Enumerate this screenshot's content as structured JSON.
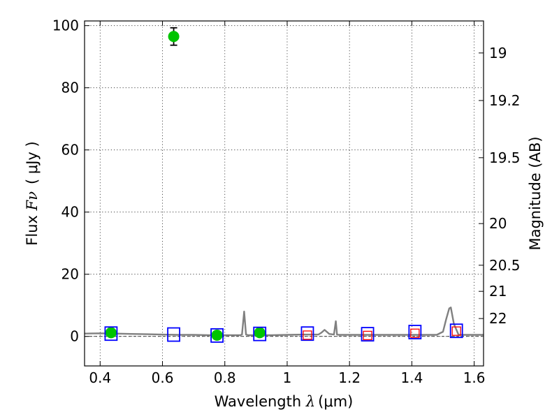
{
  "chart_data": {
    "type": "scatter",
    "title": "",
    "xlabel": "Wavelength λ (μm)",
    "ylabel": "Flux Fν ( μJy )",
    "y2label": "Magnitude (AB)",
    "xlabel_parts": {
      "text": "Wavelength ",
      "symbol": "λ",
      "units": "(μm)"
    },
    "ylabel_parts": {
      "text": "Flux ",
      "symbol": "Fν",
      "units": "( μJy )"
    },
    "xlim": [
      0.35,
      1.63
    ],
    "ylim": [
      -9.5,
      101.5
    ],
    "xticks": [
      0.4,
      0.6,
      0.8,
      1.0,
      1.2,
      1.4,
      1.6
    ],
    "xtick_labels": [
      "0.4",
      "0.6",
      "0.8",
      "1",
      "1.2",
      "1.4",
      "1.6"
    ],
    "yticks": [
      0,
      20,
      40,
      60,
      80,
      100
    ],
    "ytick_labels": [
      "0",
      "20",
      "40",
      "60",
      "80",
      "100"
    ],
    "y2ticks": [
      {
        "label": "19",
        "flux": 91.2
      },
      {
        "label": "19.2",
        "flux": 75.9
      },
      {
        "label": "19.5",
        "flux": 57.5
      },
      {
        "label": "20",
        "flux": 36.3
      },
      {
        "label": "20.5",
        "flux": 22.9
      },
      {
        "label": "21",
        "flux": 14.5
      },
      {
        "label": "22",
        "flux": 5.75
      }
    ],
    "grid": true,
    "series": [
      {
        "kind": "line",
        "color": "#808080",
        "x": [
          0.35,
          0.4,
          0.45,
          0.5,
          0.55,
          0.6,
          0.65,
          0.7,
          0.75,
          0.8,
          0.85,
          0.855,
          0.862,
          0.868,
          0.875,
          0.9,
          0.95,
          1.0,
          1.05,
          1.1,
          1.11,
          1.12,
          1.135,
          1.15,
          1.156,
          1.16,
          1.166,
          1.2,
          1.25,
          1.3,
          1.35,
          1.4,
          1.45,
          1.48,
          1.5,
          1.51,
          1.52,
          1.525,
          1.535,
          1.55,
          1.6,
          1.63
        ],
        "y": [
          0.9,
          1.0,
          0.9,
          0.8,
          0.7,
          0.6,
          0.5,
          0.5,
          0.4,
          0.4,
          0.4,
          0.6,
          8.0,
          0.6,
          0.4,
          0.4,
          0.4,
          0.5,
          0.6,
          0.6,
          1.2,
          2.1,
          0.8,
          0.6,
          4.9,
          0.6,
          0.5,
          0.5,
          0.5,
          0.5,
          0.5,
          0.5,
          0.5,
          0.5,
          1.5,
          5.5,
          9.0,
          9.3,
          4.0,
          0.5,
          0.5,
          0.5
        ]
      },
      {
        "kind": "scatter",
        "marker": "circle",
        "color": "#00c400",
        "x": [
          0.435,
          0.636,
          0.775,
          0.912
        ],
        "y": [
          1.2,
          96.5,
          0.4,
          1.2
        ],
        "yerr": [
          0.6,
          2.8,
          0.5,
          0.6
        ]
      },
      {
        "kind": "scatter",
        "marker": "square-open",
        "color": "#0000ff",
        "x": [
          0.435,
          0.636,
          0.775,
          0.912,
          1.065,
          1.258,
          1.41,
          1.543
        ],
        "y": [
          0.9,
          0.6,
          0.3,
          0.8,
          0.9,
          0.7,
          1.4,
          1.8
        ]
      },
      {
        "kind": "scatter",
        "marker": "square-open-small",
        "color": "#ff0000",
        "x": [
          1.065,
          1.258,
          1.41,
          1.543
        ],
        "y": [
          0.4,
          0.3,
          1.0,
          1.7
        ]
      }
    ]
  }
}
